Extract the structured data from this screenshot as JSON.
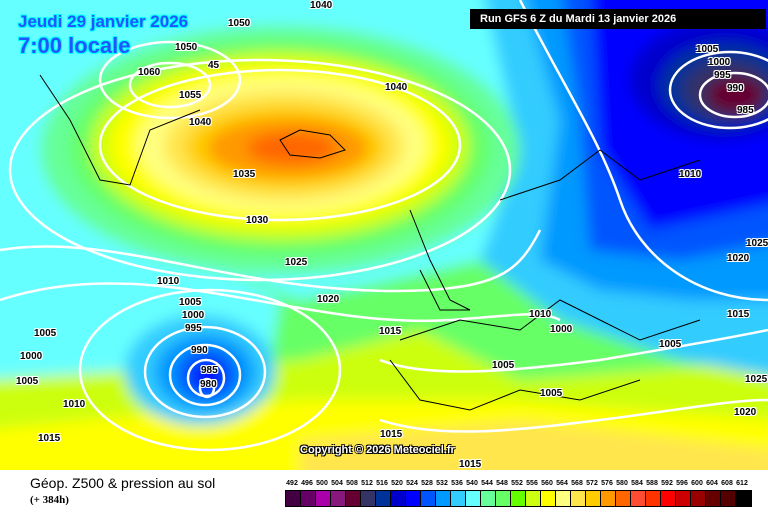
{
  "header": {
    "date": "Jeudi 29 janvier 2026",
    "time": "7:00 locale",
    "run": "Run GFS 6 Z du Mardi 13 janvier 2026"
  },
  "copyright": "Copyright © 2026 Meteociel.fr",
  "footer": {
    "title": "Géop. Z500 & pression au sol",
    "lead": "(+ 384h)"
  },
  "legend": {
    "labels": [
      "492",
      "496",
      "500",
      "504",
      "508",
      "512",
      "516",
      "520",
      "524",
      "528",
      "532",
      "536",
      "540",
      "544",
      "548",
      "552",
      "556",
      "560",
      "564",
      "568",
      "572",
      "576",
      "580",
      "584",
      "588",
      "592",
      "596",
      "600",
      "604",
      "608",
      "612"
    ],
    "colors": [
      "#420042",
      "#660066",
      "#aa00aa",
      "#88187e",
      "#660033",
      "#333366",
      "#003399",
      "#0000cc",
      "#0000ff",
      "#0055ff",
      "#0099ff",
      "#33ccff",
      "#66ffff",
      "#66ff99",
      "#66ff66",
      "#66ff00",
      "#ccff11",
      "#ffff00",
      "#ffff80",
      "#ffe64d",
      "#ffcc00",
      "#ff9900",
      "#ff6600",
      "#ff4c33",
      "#ff3300",
      "#ff0000",
      "#cc0000",
      "#990000",
      "#660000",
      "#550000",
      "#000000"
    ]
  },
  "isobars": [
    "1040",
    "1050",
    "45",
    "1050",
    "1060",
    "1055",
    "1040",
    "1040",
    "1035",
    "1030",
    "1025",
    "1020",
    "1015",
    "1010",
    "1005",
    "1000",
    "995",
    "990",
    "985",
    "980",
    "1005",
    "1000",
    "1005",
    "1010",
    "1015",
    "1015",
    "1005",
    "1005",
    "1010",
    "1000",
    "1005",
    "1015",
    "1020",
    "1025",
    "1010",
    "1005",
    "1000",
    "995",
    "990",
    "985",
    "1025",
    "1020",
    "1015"
  ]
}
